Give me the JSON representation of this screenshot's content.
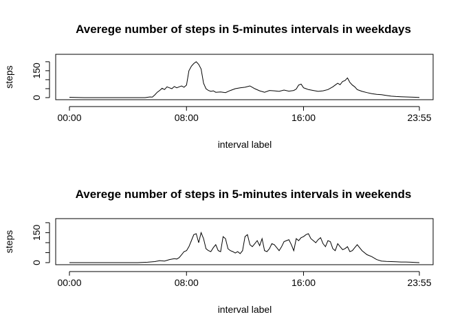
{
  "chart_data": [
    {
      "type": "line",
      "title": "Averege number of steps in 5-minutes intervals in weekdays",
      "xlabel": "interval label",
      "ylabel": "steps",
      "xticks": [
        "00:00",
        "08:00",
        "16:00",
        "23:55"
      ],
      "xtick_values": [
        0,
        96,
        192,
        287
      ],
      "yticks": [
        0,
        50,
        100,
        150,
        200
      ],
      "ytick_labels": [
        "0",
        "",
        "",
        "150",
        ""
      ],
      "ylim": [
        0,
        230
      ],
      "xlim": [
        0,
        287
      ],
      "series": [
        {
          "x": [
            0,
            12,
            24,
            36,
            48,
            60,
            62,
            64,
            66,
            68,
            70,
            72,
            74,
            76,
            78,
            80,
            82,
            84,
            86,
            88,
            90,
            92,
            94,
            96,
            98,
            100,
            102,
            104,
            106,
            108,
            110,
            112,
            114,
            116,
            118,
            120,
            124,
            128,
            132,
            136,
            140,
            144,
            148,
            152,
            156,
            160,
            164,
            168,
            172,
            176,
            180,
            184,
            186,
            188,
            190,
            192,
            194,
            196,
            200,
            204,
            208,
            212,
            216,
            218,
            220,
            222,
            224,
            226,
            228,
            230,
            232,
            234,
            236,
            238,
            240,
            244,
            248,
            252,
            256,
            260,
            264,
            268,
            272,
            276,
            280,
            284,
            287
          ],
          "y": [
            2,
            0,
            0,
            0,
            0,
            0,
            0,
            2,
            4,
            3,
            15,
            30,
            40,
            52,
            45,
            60,
            55,
            50,
            62,
            55,
            60,
            65,
            58,
            70,
            150,
            175,
            190,
            200,
            185,
            160,
            80,
            50,
            40,
            35,
            38,
            30,
            32,
            28,
            40,
            50,
            55,
            58,
            65,
            50,
            38,
            30,
            40,
            38,
            35,
            42,
            36,
            40,
            48,
            70,
            75,
            55,
            50,
            45,
            40,
            35,
            38,
            45,
            60,
            70,
            80,
            72,
            90,
            95,
            110,
            85,
            70,
            60,
            45,
            40,
            35,
            28,
            22,
            18,
            16,
            12,
            8,
            6,
            5,
            4,
            3,
            2,
            1
          ]
        }
      ]
    },
    {
      "type": "line",
      "title": "Averege number of steps in 5-minutes intervals in weekends",
      "xlabel": "interval label",
      "ylabel": "steps",
      "xticks": [
        "00:00",
        "08:00",
        "16:00",
        "23:55"
      ],
      "xtick_values": [
        0,
        96,
        192,
        287
      ],
      "yticks": [
        0,
        50,
        100,
        150,
        200
      ],
      "ytick_labels": [
        "0",
        "",
        "",
        "150",
        ""
      ],
      "ylim": [
        0,
        210
      ],
      "xlim": [
        0,
        287
      ],
      "series": [
        {
          "x": [
            0,
            12,
            24,
            36,
            48,
            56,
            64,
            70,
            74,
            78,
            82,
            86,
            88,
            90,
            92,
            94,
            96,
            98,
            100,
            102,
            104,
            106,
            108,
            110,
            112,
            114,
            116,
            118,
            120,
            122,
            124,
            126,
            128,
            130,
            132,
            134,
            136,
            138,
            140,
            142,
            144,
            146,
            148,
            150,
            152,
            154,
            156,
            158,
            160,
            162,
            164,
            166,
            168,
            170,
            172,
            174,
            176,
            178,
            180,
            182,
            184,
            186,
            188,
            190,
            192,
            194,
            196,
            198,
            200,
            202,
            204,
            206,
            208,
            210,
            212,
            214,
            216,
            218,
            220,
            222,
            224,
            226,
            228,
            230,
            232,
            234,
            236,
            240,
            244,
            248,
            252,
            256,
            260,
            264,
            268,
            272,
            276,
            280,
            284,
            287
          ],
          "y": [
            0,
            0,
            0,
            0,
            0,
            0,
            2,
            5,
            10,
            8,
            15,
            20,
            18,
            25,
            40,
            55,
            60,
            80,
            110,
            140,
            145,
            100,
            150,
            120,
            70,
            60,
            55,
            75,
            90,
            60,
            55,
            130,
            120,
            70,
            60,
            55,
            48,
            55,
            45,
            60,
            130,
            140,
            90,
            80,
            95,
            110,
            85,
            120,
            60,
            55,
            70,
            95,
            90,
            75,
            60,
            80,
            105,
            110,
            115,
            90,
            60,
            120,
            110,
            125,
            130,
            140,
            145,
            120,
            110,
            100,
            115,
            125,
            95,
            80,
            110,
            105,
            70,
            60,
            95,
            80,
            65,
            70,
            80,
            55,
            60,
            75,
            90,
            60,
            40,
            30,
            15,
            8,
            6,
            5,
            4,
            3,
            3,
            2,
            1,
            0
          ]
        }
      ]
    }
  ]
}
